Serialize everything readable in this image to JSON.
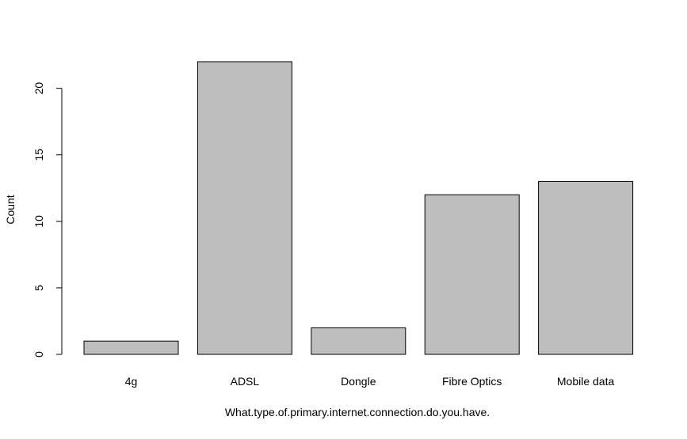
{
  "chart_data": {
    "type": "bar",
    "title": "",
    "xlabel": "What.type.of.primary.internet.connection.do.you.have.",
    "ylabel": "Count",
    "categories": [
      "4g",
      "ADSL",
      "Dongle",
      "Fibre Optics",
      "Mobile data"
    ],
    "values": [
      1,
      22,
      2,
      12,
      13
    ],
    "ylim": [
      0,
      22
    ],
    "yticks": [
      0,
      5,
      10,
      15,
      20
    ],
    "grid": false,
    "bar_color": "#bebebe",
    "edge_color": "#000000"
  }
}
